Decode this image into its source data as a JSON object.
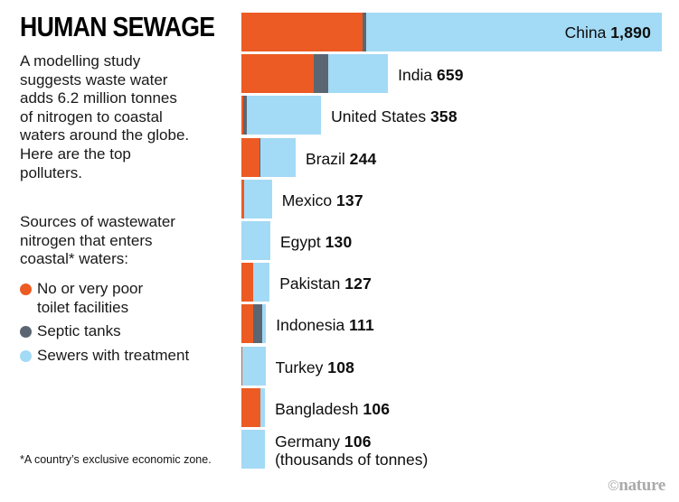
{
  "header": {
    "title": "HUMAN SEWAGE",
    "intro": "A modelling study\nsuggests waste water\nadds 6.2 million tonnes\nof nitrogen to coastal\nwaters around the globe.\nHere are the top\npolluters."
  },
  "legend": {
    "heading": "Sources of wastewater\nnitrogen that enters\ncoastal* waters:",
    "items": [
      {
        "label": "No or very poor\ntoilet facilities",
        "color": "#ec5b24"
      },
      {
        "label": "Septic tanks",
        "color": "#5c6672"
      },
      {
        "label": "Sewers with treatment",
        "color": "#a3daf5"
      }
    ]
  },
  "footnote": {
    "text": "*A country’s exclusive economic zone."
  },
  "credit": {
    "symbol": "©",
    "name": "nature"
  },
  "chart_data": {
    "type": "bar",
    "orientation": "horizontal",
    "stacked": true,
    "unit": "thousands of tonnes",
    "unit_label": "(thousands of tonnes)",
    "xlim": [
      0,
      1890
    ],
    "inside_label_index": 0,
    "categories": [
      "China",
      "India",
      "United States",
      "Brazil",
      "Mexico",
      "Egypt",
      "Pakistan",
      "Indonesia",
      "Turkey",
      "Bangladesh",
      "Germany"
    ],
    "totals": [
      1890,
      659,
      358,
      244,
      137,
      130,
      127,
      111,
      108,
      106,
      106
    ],
    "value_labels": [
      "1,890",
      "659",
      "358",
      "244",
      "137",
      "130",
      "127",
      "111",
      "108",
      "106",
      "106"
    ],
    "series": [
      {
        "name": "No or very poor toilet facilities",
        "color": "#ec5b24",
        "values": [
          545,
          325,
          8,
          80,
          12,
          0,
          53,
          53,
          6,
          86,
          0
        ]
      },
      {
        "name": "Septic tanks",
        "color": "#5c6672",
        "values": [
          16,
          65,
          16,
          6,
          0,
          0,
          0,
          40,
          0,
          0,
          0
        ]
      },
      {
        "name": "Sewers with treatment",
        "color": "#a3daf5",
        "values": [
          1329,
          269,
          334,
          158,
          125,
          130,
          74,
          18,
          102,
          20,
          106
        ]
      }
    ]
  }
}
